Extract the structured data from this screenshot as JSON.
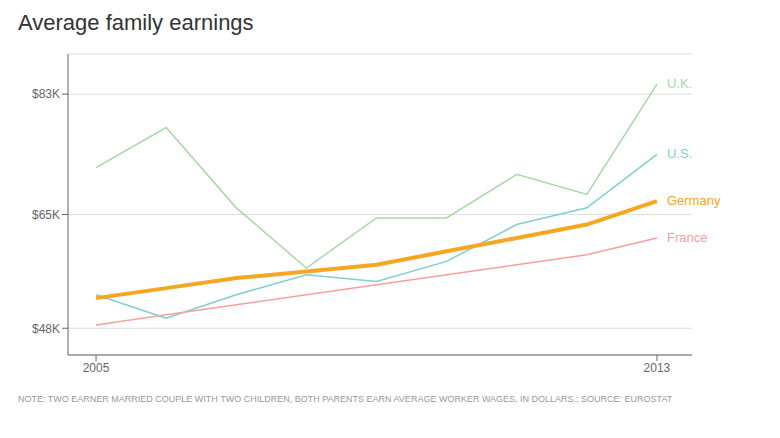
{
  "chart_data": {
    "type": "line",
    "title": "Average family earnings",
    "note": "NOTE: TWO EARNER MARRIED COUPLE WITH TWO CHILDREN, BOTH PARENTS EARN AVERAGE WORKER WAGES, IN DOLLARS.;  SOURCE: EUROSTAT",
    "x": [
      2005,
      2006,
      2007,
      2008,
      2009,
      2010,
      2011,
      2012,
      2013
    ],
    "xlim": [
      2004.6,
      2013.5
    ],
    "xticks": [
      2005,
      2013
    ],
    "ylim": [
      44000,
      89000
    ],
    "yticks": [
      {
        "value": 48000,
        "label": "$48K"
      },
      {
        "value": 65000,
        "label": "$65K"
      },
      {
        "value": 83000,
        "label": "$83K"
      }
    ],
    "grid": true,
    "series": [
      {
        "name": "U.K.",
        "color": "#a8d8a8",
        "values": [
          72000,
          78000,
          66000,
          57000,
          64500,
          64500,
          71000,
          68000,
          84500
        ]
      },
      {
        "name": "U.S.",
        "color": "#80cece",
        "values": [
          53000,
          49500,
          53000,
          56000,
          55000,
          58000,
          63500,
          66000,
          74000
        ]
      },
      {
        "name": "France",
        "color": "#f4a0a0",
        "values": [
          48500,
          50000,
          51500,
          53000,
          54500,
          56000,
          57500,
          59000,
          61500
        ]
      },
      {
        "name": "Germany",
        "color": "#f5a623",
        "values": [
          52500,
          54000,
          55500,
          56500,
          57500,
          59500,
          61500,
          63500,
          67000
        ]
      }
    ]
  }
}
